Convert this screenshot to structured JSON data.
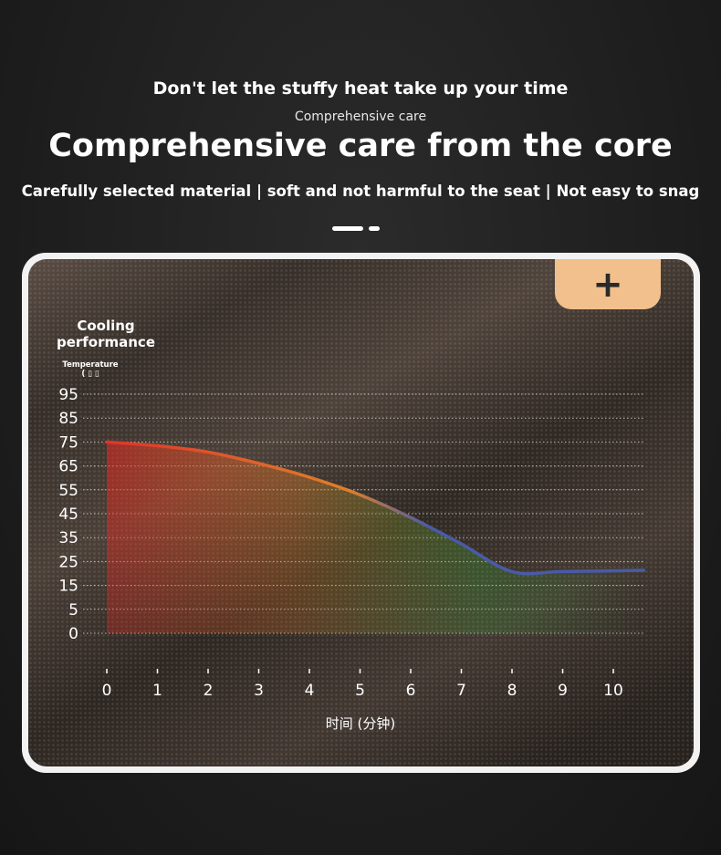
{
  "header": {
    "headline": "Don't let the stuffy heat take up your time",
    "subtitle": "Comprehensive care",
    "title": "Comprehensive care from the core",
    "tagline": "Carefully selected material | soft and not harmful to the seat | Not easy to snag"
  },
  "panel": {
    "plus_label": "+",
    "accent_color": "#f1c08c"
  },
  "chart_data": {
    "type": "area",
    "title": "Cooling performance",
    "ylabel": "Temperature",
    "ylabel_unit": "( ▯ ▯",
    "xlabel": "时间 (分钟)",
    "y_ticks": [
      95,
      85,
      75,
      65,
      55,
      45,
      35,
      25,
      15,
      5,
      0
    ],
    "x_ticks": [
      0,
      1,
      2,
      3,
      4,
      5,
      6,
      7,
      8,
      9,
      10
    ],
    "grid": true,
    "series": [
      {
        "x": [
          0,
          1,
          2,
          3,
          4,
          5,
          6,
          7,
          8,
          9,
          10.6
        ],
        "values": [
          76,
          74.5,
          72,
          67.5,
          62,
          55,
          46,
          35.5,
          24.5,
          24.5,
          25
        ],
        "line_colors": [
          "#e0332a",
          "#e0802a",
          "#4a5aa8"
        ],
        "fill_colors": [
          "#e02a22",
          "#d87a28",
          "#3fb43a"
        ]
      }
    ]
  }
}
